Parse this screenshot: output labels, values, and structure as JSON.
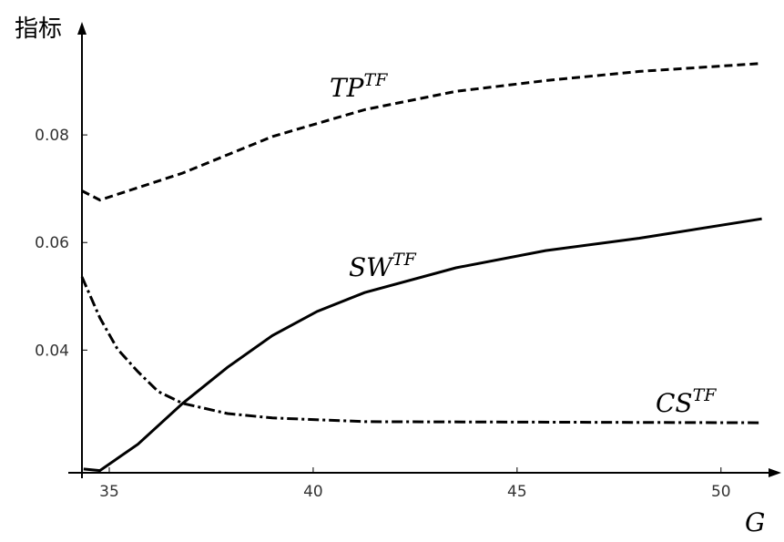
{
  "chart_data": {
    "type": "line",
    "y_label": "指标",
    "x_label": "G",
    "xlim": [
      34.33,
      51.3
    ],
    "ylim": [
      0.0172,
      0.1
    ],
    "xticks": [
      35,
      40,
      45,
      50
    ],
    "yticks": [
      0.04,
      0.06,
      0.08
    ],
    "series": [
      {
        "name": "TP",
        "name_sup": "TF",
        "color": "#000000",
        "dash": "9,5",
        "x": [
          34.33,
          34.77,
          36.8,
          39.0,
          41.26,
          43.5,
          45.7,
          48.0,
          51.0
        ],
        "values": [
          0.0696,
          0.0679,
          0.0729,
          0.0797,
          0.0847,
          0.0881,
          0.0901,
          0.0918,
          0.0933
        ]
      },
      {
        "name": "SW",
        "name_sup": "TF",
        "color": "#000000",
        "dash": "none",
        "x": [
          34.37,
          34.77,
          35.7,
          36.8,
          37.9,
          39.0,
          40.1,
          41.26,
          43.5,
          45.7,
          48.0,
          51.0
        ],
        "values": [
          0.0179,
          0.0176,
          0.0225,
          0.0301,
          0.0368,
          0.0427,
          0.0472,
          0.0507,
          0.0553,
          0.0585,
          0.0608,
          0.0644
        ]
      },
      {
        "name": "CS",
        "name_sup": "TF",
        "color": "#000000",
        "dash": "12,4,3,4",
        "x": [
          34.33,
          34.77,
          35.2,
          35.7,
          36.2,
          36.8,
          37.9,
          39.0,
          41.3,
          51.0
        ],
        "values": [
          0.0536,
          0.046,
          0.0402,
          0.036,
          0.0323,
          0.0301,
          0.0282,
          0.0274,
          0.0267,
          0.0265
        ]
      }
    ]
  }
}
